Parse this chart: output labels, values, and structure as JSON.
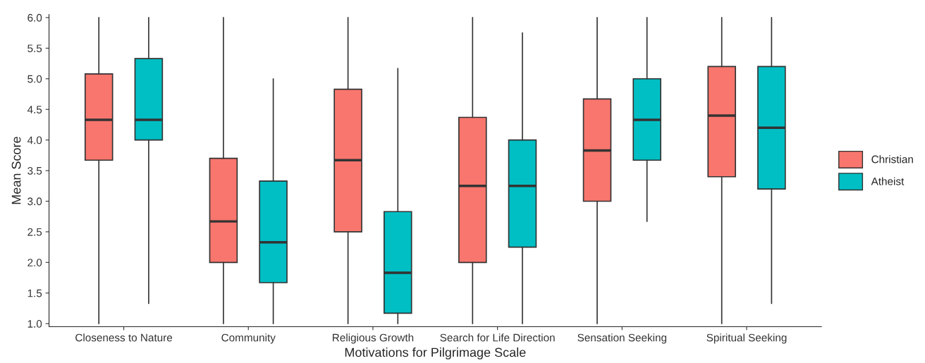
{
  "chart_data": {
    "type": "box",
    "xlabel": "Motivations for Pilgrimage Scale",
    "ylabel": "Mean Score",
    "categories": [
      "Closeness to Nature",
      "Community",
      "Religious Growth",
      "Search for Life Direction",
      "Sensation Seeking",
      "Spiritual Seeking"
    ],
    "ylim": [
      0.95,
      6.05
    ],
    "yticks": [
      {
        "value": 1.0,
        "label": "1.0"
      },
      {
        "value": 1.5,
        "label": "1.5"
      },
      {
        "value": 2.0,
        "label": "2.0"
      },
      {
        "value": 2.5,
        "label": "2.5"
      },
      {
        "value": 3.0,
        "label": "3.0"
      },
      {
        "value": 3.5,
        "label": "3.5"
      },
      {
        "value": 4.0,
        "label": "4.0"
      },
      {
        "value": 4.5,
        "label": "4.5"
      },
      {
        "value": 5.0,
        "label": "5.0"
      },
      {
        "value": 5.5,
        "label": "5.5"
      },
      {
        "value": 6.0,
        "label": "6.0"
      }
    ],
    "grid": false,
    "legend": "right",
    "series": [
      {
        "name": "Christian",
        "color": "#f8766d",
        "boxes": [
          {
            "low": 1.0,
            "q1": 3.67,
            "median": 4.33,
            "q3": 5.08,
            "high": 6.0
          },
          {
            "low": 1.0,
            "q1": 2.0,
            "median": 2.67,
            "q3": 3.7,
            "high": 6.0
          },
          {
            "low": 1.0,
            "q1": 2.5,
            "median": 3.67,
            "q3": 4.83,
            "high": 6.0
          },
          {
            "low": 1.0,
            "q1": 2.0,
            "median": 3.25,
            "q3": 4.37,
            "high": 6.0
          },
          {
            "low": 1.0,
            "q1": 3.0,
            "median": 3.83,
            "q3": 4.67,
            "high": 6.0
          },
          {
            "low": 1.0,
            "q1": 3.4,
            "median": 4.4,
            "q3": 5.2,
            "high": 6.0
          }
        ]
      },
      {
        "name": "Atheist",
        "color": "#00bfc4",
        "boxes": [
          {
            "low": 1.33,
            "q1": 4.0,
            "median": 4.33,
            "q3": 5.33,
            "high": 6.0
          },
          {
            "low": 1.0,
            "q1": 1.67,
            "median": 2.33,
            "q3": 3.33,
            "high": 5.0
          },
          {
            "low": 1.0,
            "q1": 1.17,
            "median": 1.83,
            "q3": 2.83,
            "high": 5.17
          },
          {
            "low": 1.0,
            "q1": 2.25,
            "median": 3.25,
            "q3": 4.0,
            "high": 5.75
          },
          {
            "low": 2.67,
            "q1": 3.67,
            "median": 4.33,
            "q3": 5.0,
            "high": 6.0
          },
          {
            "low": 1.33,
            "q1": 3.2,
            "median": 4.2,
            "q3": 5.2,
            "high": 6.0
          }
        ]
      }
    ]
  }
}
